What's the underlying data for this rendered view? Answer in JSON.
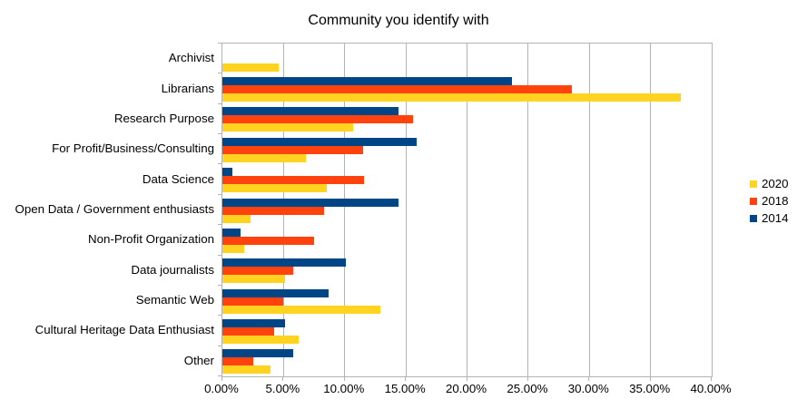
{
  "chart_data": {
    "type": "bar",
    "orientation": "horizontal",
    "title": "Community you identify with",
    "categories": [
      "Archivist",
      "Librarians",
      "Research Purpose",
      "For Profit/Business/Consulting",
      "Data Science",
      "Open Data / Government enthusiasts",
      "Non-Profit Organization",
      "Data journalists",
      "Semantic Web",
      "Cultural Heritage Data Enthusiast",
      "Other"
    ],
    "series": [
      {
        "name": "2020",
        "color": "#FFD320",
        "values": [
          4.6,
          37.5,
          10.7,
          6.8,
          8.5,
          2.3,
          1.8,
          5.1,
          12.9,
          6.2,
          3.9
        ]
      },
      {
        "name": "2018",
        "color": "#FF420E",
        "values": [
          0,
          28.6,
          15.6,
          11.5,
          11.6,
          8.3,
          7.5,
          5.8,
          5.0,
          4.2,
          2.5
        ]
      },
      {
        "name": "2014",
        "color": "#004586",
        "values": [
          0,
          23.7,
          14.4,
          15.9,
          0.8,
          14.4,
          1.5,
          10.1,
          8.7,
          5.1,
          5.8
        ]
      }
    ],
    "xlim": [
      0,
      40
    ],
    "x_ticks": [
      {
        "value": 0,
        "label": "0.00%"
      },
      {
        "value": 5,
        "label": "5.00%"
      },
      {
        "value": 10,
        "label": "10.00%"
      },
      {
        "value": 15,
        "label": "15.00%"
      },
      {
        "value": 20,
        "label": "20.00%"
      },
      {
        "value": 25,
        "label": "25.00%"
      },
      {
        "value": 30,
        "label": "30.00%"
      },
      {
        "value": 35,
        "label": "35.00%"
      },
      {
        "value": 40,
        "label": "40.00%"
      }
    ],
    "grid": "vertical",
    "legend_position": "right",
    "axis_color": "#b3b3b3",
    "background": "#ffffff",
    "text_color": "#000000"
  }
}
